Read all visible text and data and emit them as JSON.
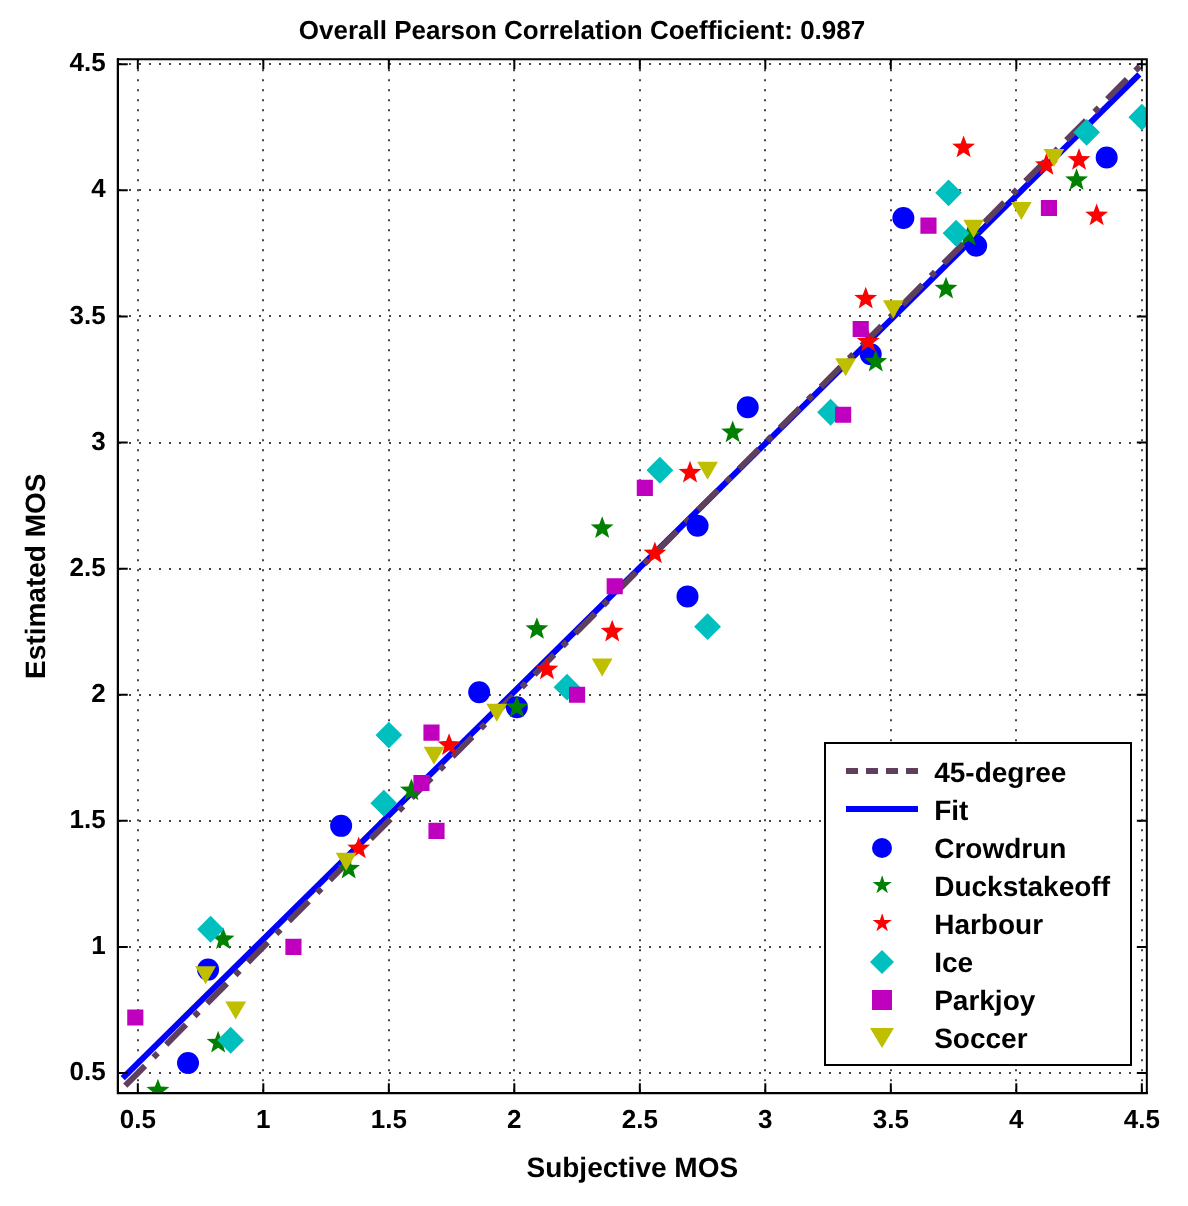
{
  "chart_data": {
    "type": "scatter",
    "title": "Overall Pearson Correlation Coefficient: 0.987",
    "xlabel": "Subjective MOS",
    "ylabel": "Estimated MOS",
    "xlim": [
      0.42,
      4.52
    ],
    "ylim": [
      0.42,
      4.52
    ],
    "xticks": [
      0.5,
      1,
      1.5,
      2,
      2.5,
      3,
      3.5,
      4,
      4.5
    ],
    "yticks": [
      0.5,
      1,
      1.5,
      2,
      2.5,
      3,
      3.5,
      4,
      4.5
    ],
    "grid": true,
    "legend": "bottom right",
    "series": [
      {
        "name": "45-degree",
        "type": "line",
        "color": "#5e3f5e",
        "line_style": "dashed",
        "x": [
          0.45,
          4.5
        ],
        "values": [
          0.45,
          4.5
        ]
      },
      {
        "name": "Fit",
        "type": "line",
        "color": "#0000ff",
        "line_style": "solid",
        "x": [
          0.44,
          4.49
        ],
        "values": [
          0.48,
          4.46
        ]
      },
      {
        "name": "Crowdrun",
        "color": "#0000ff",
        "marker": "circle",
        "x": [
          0.7,
          0.78,
          1.31,
          1.86,
          2.01,
          2.69,
          2.73,
          2.93,
          3.42,
          3.55,
          3.84,
          4.36
        ],
        "values": [
          0.54,
          0.91,
          1.48,
          2.01,
          1.95,
          2.39,
          2.67,
          3.14,
          3.35,
          3.89,
          3.78,
          4.13
        ]
      },
      {
        "name": "Duckstakeoff",
        "color": "#008000",
        "marker": "star",
        "x": [
          0.58,
          0.82,
          0.84,
          1.34,
          1.59,
          2.01,
          2.09,
          2.35,
          2.87,
          3.44,
          3.72,
          3.81,
          4.24
        ],
        "values": [
          0.43,
          0.62,
          1.03,
          1.31,
          1.62,
          1.95,
          2.26,
          2.66,
          3.04,
          3.32,
          3.61,
          3.82,
          4.04
        ]
      },
      {
        "name": "Harbour",
        "color": "#ff0000",
        "marker": "star",
        "x": [
          1.38,
          1.74,
          2.13,
          2.39,
          2.56,
          2.7,
          3.41,
          3.4,
          3.79,
          4.12,
          4.25,
          4.32
        ],
        "values": [
          1.39,
          1.8,
          2.1,
          2.25,
          2.56,
          2.88,
          3.4,
          3.57,
          4.17,
          4.1,
          4.12,
          3.9
        ]
      },
      {
        "name": "Ice",
        "color": "#00bfbf",
        "marker": "diamond",
        "x": [
          0.79,
          0.87,
          1.48,
          1.5,
          2.21,
          2.58,
          2.77,
          3.26,
          3.73,
          3.76,
          4.28,
          4.5
        ],
        "values": [
          1.07,
          0.63,
          1.57,
          1.84,
          2.03,
          2.89,
          2.27,
          3.12,
          3.99,
          3.83,
          4.23,
          4.29
        ]
      },
      {
        "name": "Parkjoy",
        "color": "#bf00bf",
        "marker": "square",
        "x": [
          0.49,
          1.12,
          1.63,
          1.67,
          1.69,
          2.25,
          2.4,
          2.52,
          3.31,
          3.38,
          3.65,
          4.13
        ],
        "values": [
          0.72,
          1.0,
          1.65,
          1.85,
          1.46,
          2.0,
          2.43,
          2.82,
          3.11,
          3.45,
          3.86,
          3.93
        ]
      },
      {
        "name": "Soccer",
        "color": "#bfbf00",
        "marker": "triangle",
        "x": [
          0.77,
          0.89,
          1.33,
          1.68,
          1.93,
          2.35,
          2.77,
          3.32,
          3.51,
          3.83,
          4.02,
          4.15
        ],
        "values": [
          0.9,
          0.76,
          1.35,
          1.77,
          1.94,
          2.12,
          2.9,
          3.31,
          3.54,
          3.86,
          3.93,
          4.14
        ]
      }
    ]
  }
}
